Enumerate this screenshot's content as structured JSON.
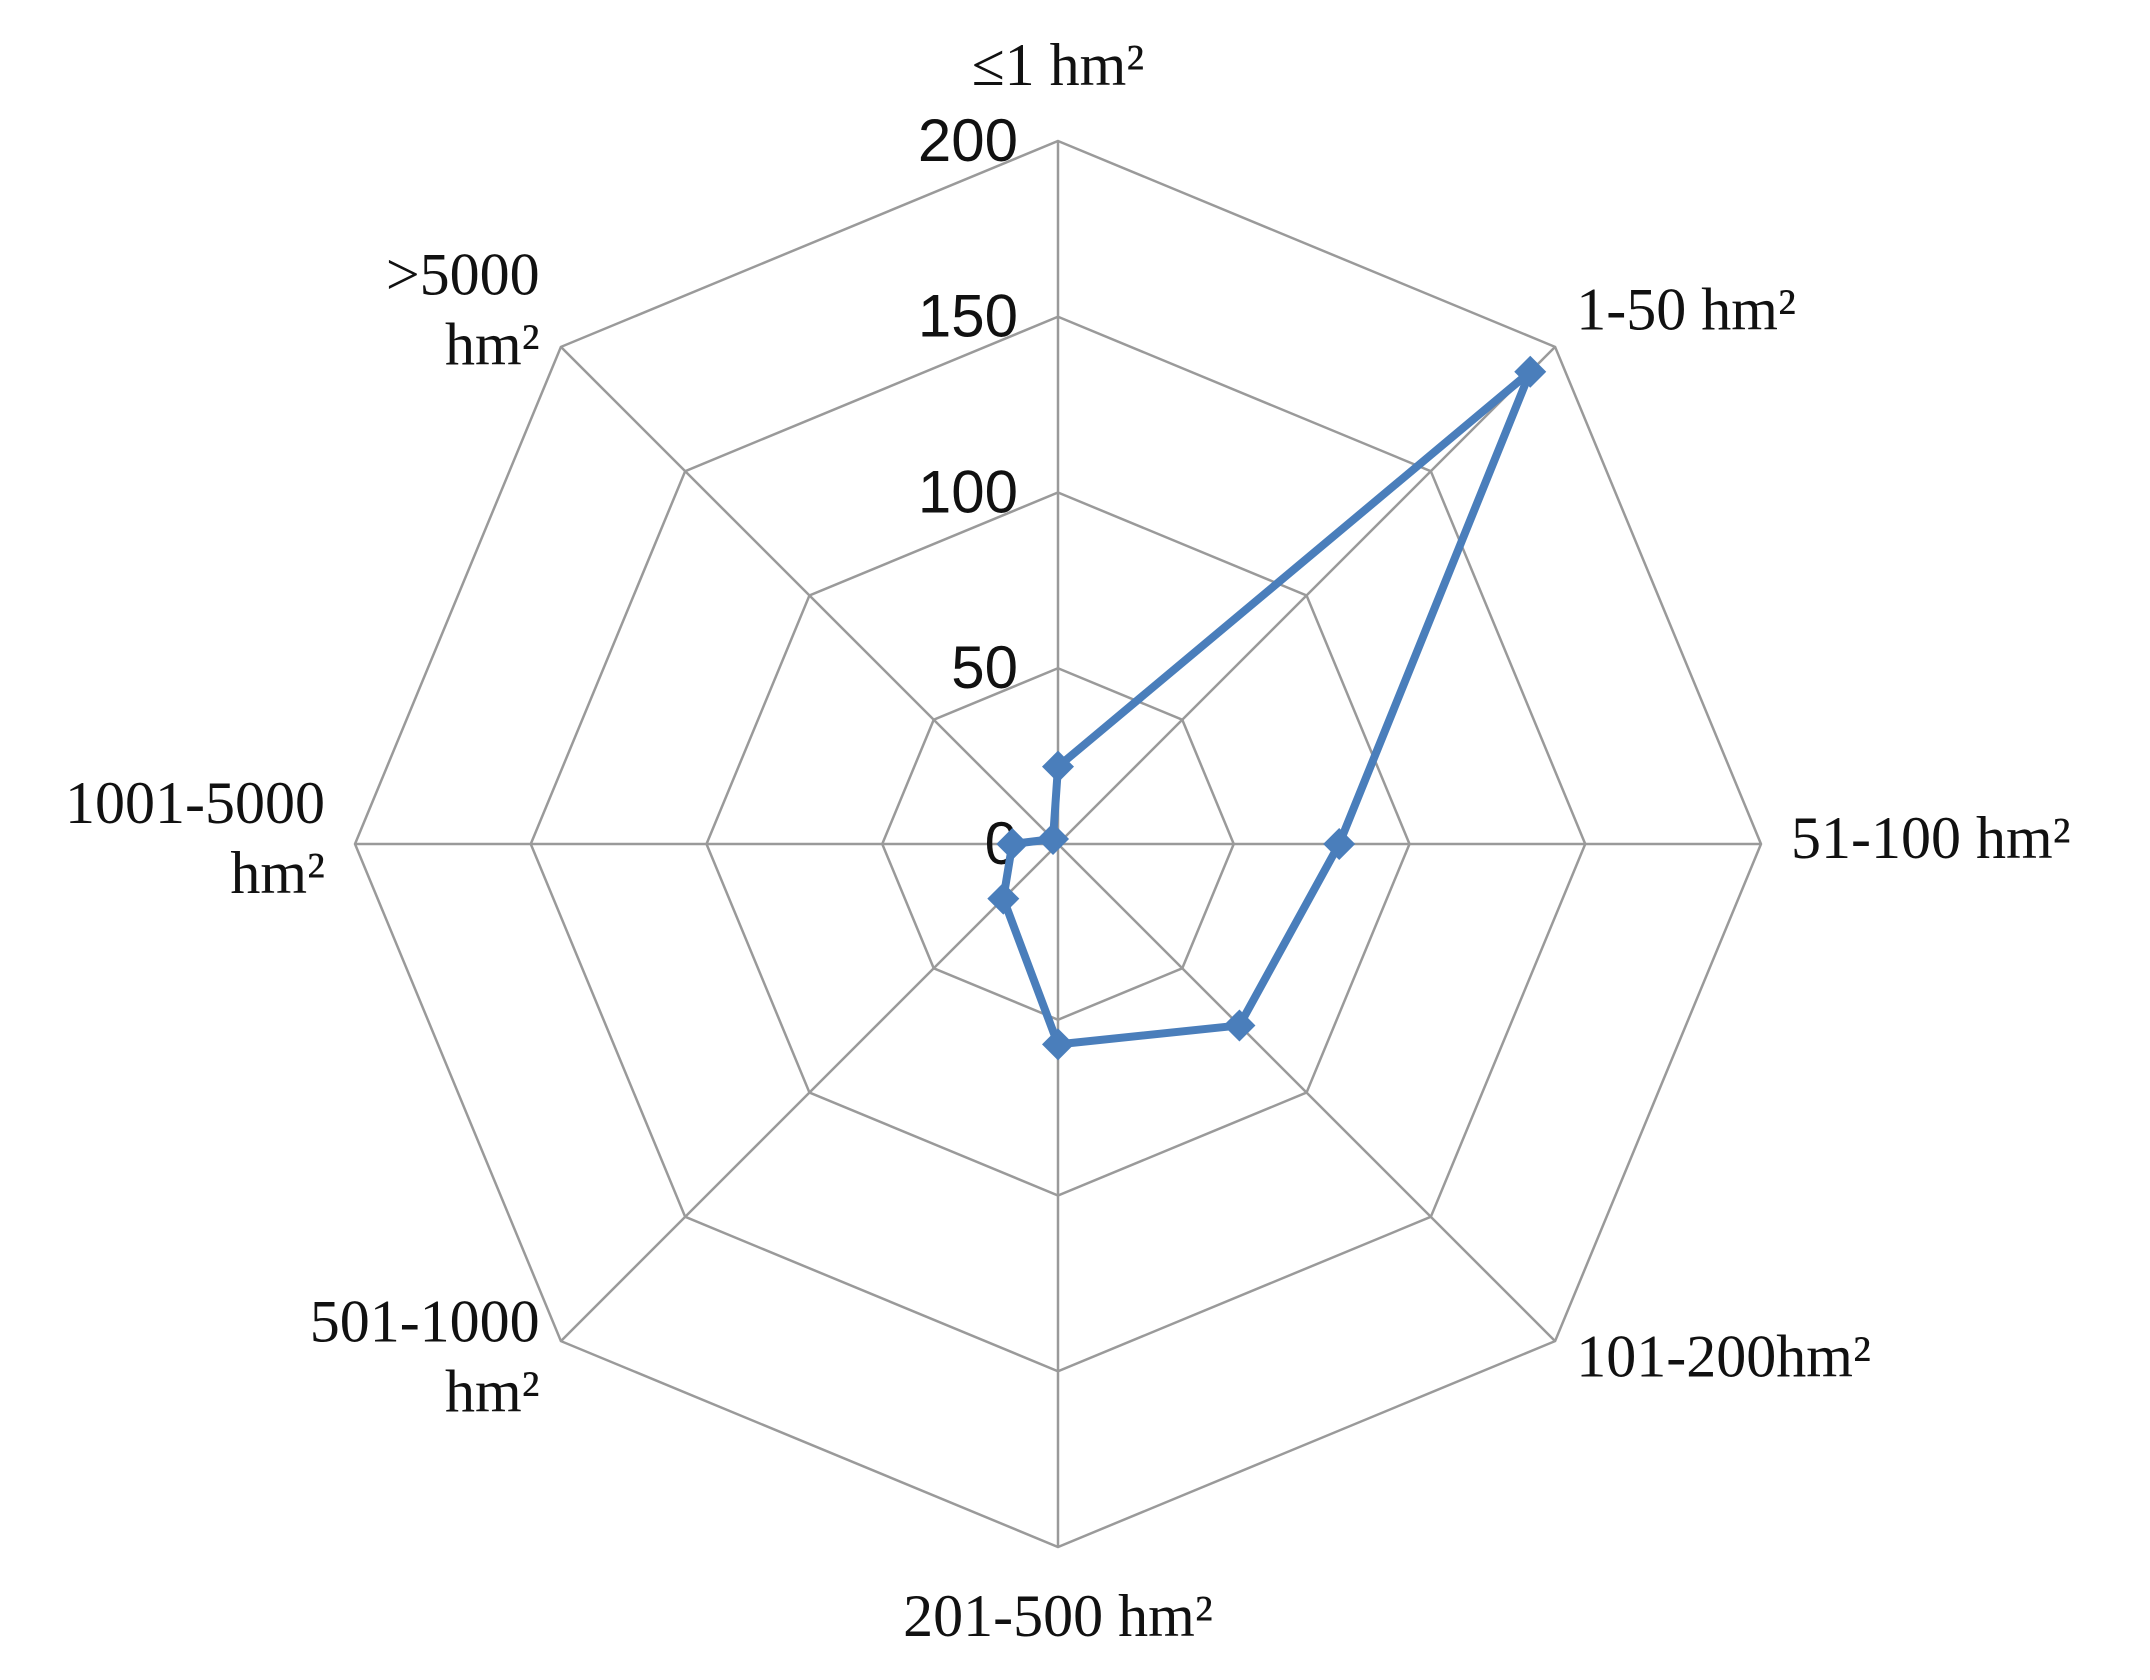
{
  "chart_data": {
    "type": "radar",
    "categories": [
      "≤1 hm²",
      "1-50 hm²",
      "51-100 hm²",
      "101-200hm²",
      "201-500 hm²",
      "501-1000\nhm²",
      "1001-5000\nhm²",
      ">5000\nhm²"
    ],
    "series": [
      {
        "color": "#4a7ebb",
        "values": [
          22,
          190,
          80,
          73,
          57,
          22,
          13,
          2
        ]
      }
    ],
    "ylim": [
      0,
      200
    ],
    "yticks": [
      0,
      50,
      100,
      150,
      200
    ],
    "grid": true
  }
}
